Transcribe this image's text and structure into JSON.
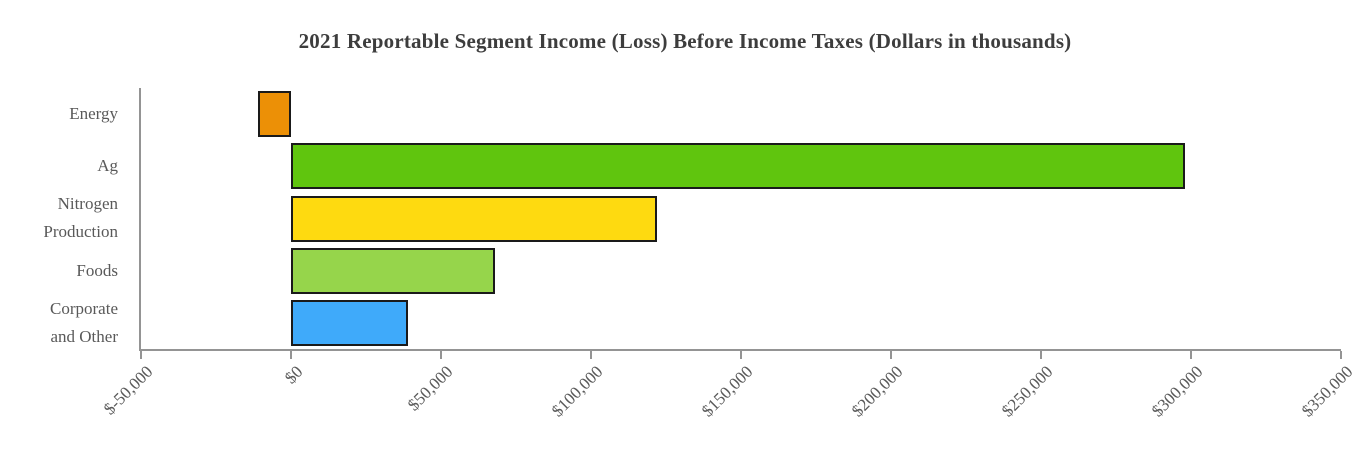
{
  "page": {
    "background_color": "#ffffff"
  },
  "chart_data": {
    "type": "bar",
    "orientation": "horizontal",
    "title": "2021 Reportable Segment Income (Loss) Before Income Taxes (Dollars in thousands)",
    "xlabel": "",
    "ylabel": "",
    "categories": [
      "Energy",
      "Ag",
      "Nitrogen\nProduction",
      "Foods",
      "Corporate\nand Other"
    ],
    "values": [
      -11000,
      298000,
      122000,
      68000,
      39000
    ],
    "bar_colors": [
      "#EC9006",
      "#60C50E",
      "#FEDA10",
      "#96D54B",
      "#3FAAFA"
    ],
    "bar_border_color": "#1a1a1a",
    "xlim": [
      -50000,
      350000
    ],
    "x_ticks": [
      -50000,
      0,
      50000,
      100000,
      150000,
      200000,
      250000,
      300000,
      350000
    ],
    "x_tick_labels": [
      "$-50,000",
      "$0",
      "$50,000",
      "$100,000",
      "$150,000",
      "$200,000",
      "$250,000",
      "$300,000",
      "$350,000"
    ],
    "grid": false,
    "legend": false,
    "axis_color": "#949494",
    "label_color": "#595959",
    "title_color": "#3d3d3d"
  }
}
